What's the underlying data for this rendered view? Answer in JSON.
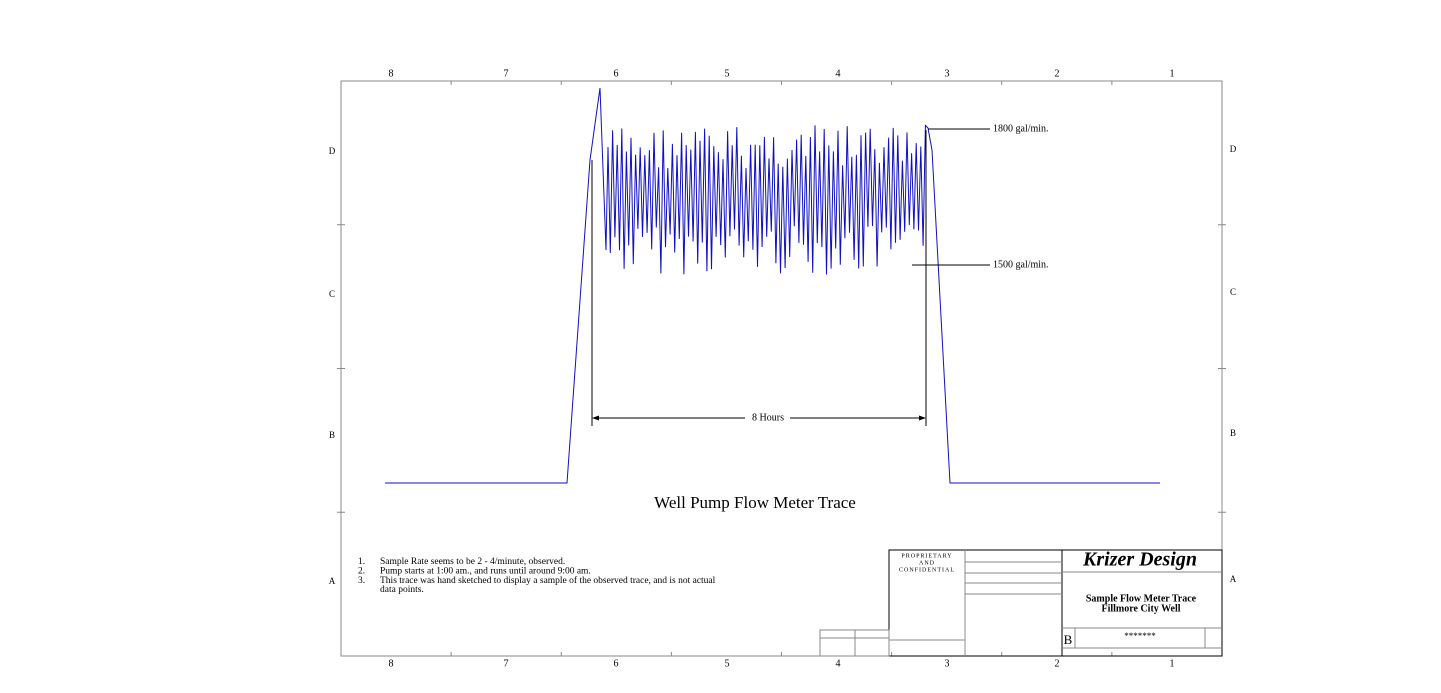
{
  "border": {
    "columns": [
      "8",
      "7",
      "6",
      "5",
      "4",
      "3",
      "2",
      "1"
    ],
    "rows": [
      "D",
      "C",
      "B",
      "A"
    ]
  },
  "drawing": {
    "title": "Well Pump Flow Meter Trace",
    "high_label": "1800 gal/min.",
    "low_label": "1500 gal/min.",
    "duration_label": "8 Hours"
  },
  "notes": [
    {
      "number": "1.",
      "text": "Sample Rate seems to be 2 - 4/minute, observed."
    },
    {
      "number": "2.",
      "text": "Pump starts at 1:00 am., and runs until around 9:00 am."
    },
    {
      "number": "3.",
      "text": "This trace was hand sketched to display a sample of the observed trace, and is not actual"
    },
    {
      "number": "",
      "text": "data points."
    }
  ],
  "title_block": {
    "notice": [
      "PROPRIETARY",
      "AND",
      "CONFIDENTIAL"
    ],
    "company": "Krizer Design",
    "title_lines": [
      "Sample Flow Meter Trace",
      "Fillmore City Well"
    ],
    "size": "B",
    "dwg_no": "*******"
  }
}
